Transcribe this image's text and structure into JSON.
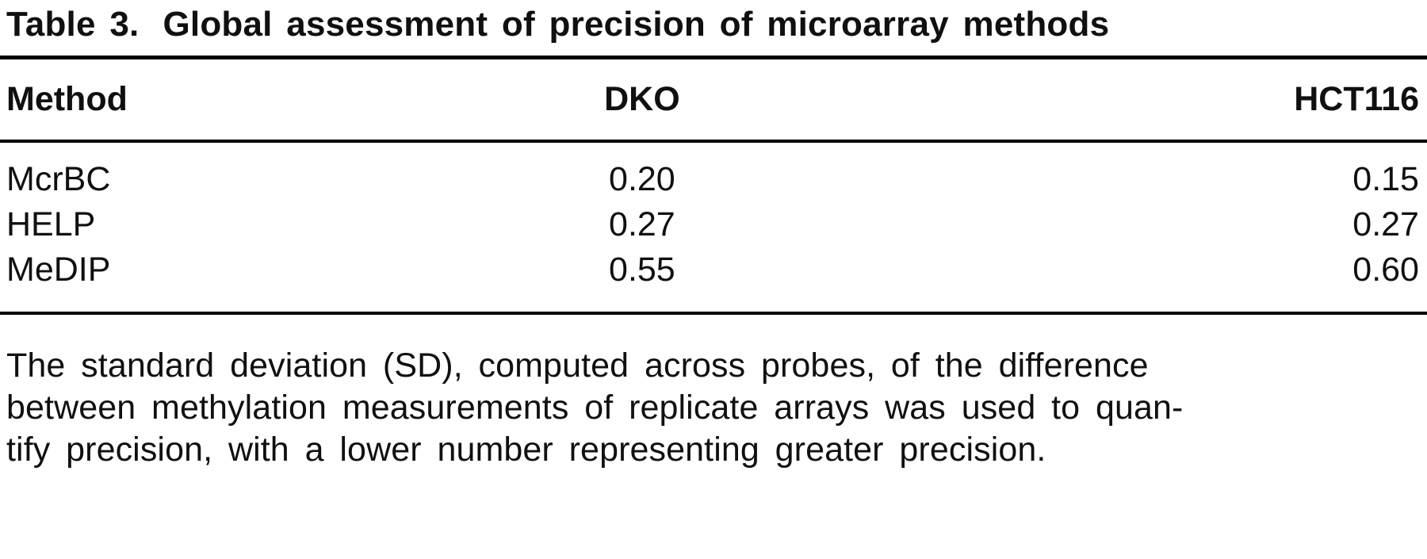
{
  "table": {
    "label": "Table 3.",
    "title": "Global assessment of precision of microarray methods",
    "columns": {
      "method": "Method",
      "dko": "DKO",
      "hct116": "HCT116"
    },
    "rows": [
      {
        "method": "McrBC",
        "dko": "0.20",
        "hct116": "0.15"
      },
      {
        "method": "HELP",
        "dko": "0.27",
        "hct116": "0.27"
      },
      {
        "method": "MeDIP",
        "dko": "0.55",
        "hct116": "0.60"
      }
    ],
    "footnote_lines": [
      "The standard deviation (SD), computed across probes, of the difference",
      "between methylation measurements of replicate arrays was used to quan-",
      "tify precision, with a lower number representing greater precision."
    ]
  },
  "chart_data": {
    "type": "table",
    "title": "Table 3. Global assessment of precision of microarray methods",
    "columns": [
      "Method",
      "DKO",
      "HCT116"
    ],
    "rows": [
      [
        "McrBC",
        0.2,
        0.15
      ],
      [
        "HELP",
        0.27,
        0.27
      ],
      [
        "MeDIP",
        0.55,
        0.6
      ]
    ],
    "footnote": "The standard deviation (SD), computed across probes, of the difference between methylation measurements of replicate arrays was used to quantify precision, with a lower number representing greater precision."
  }
}
